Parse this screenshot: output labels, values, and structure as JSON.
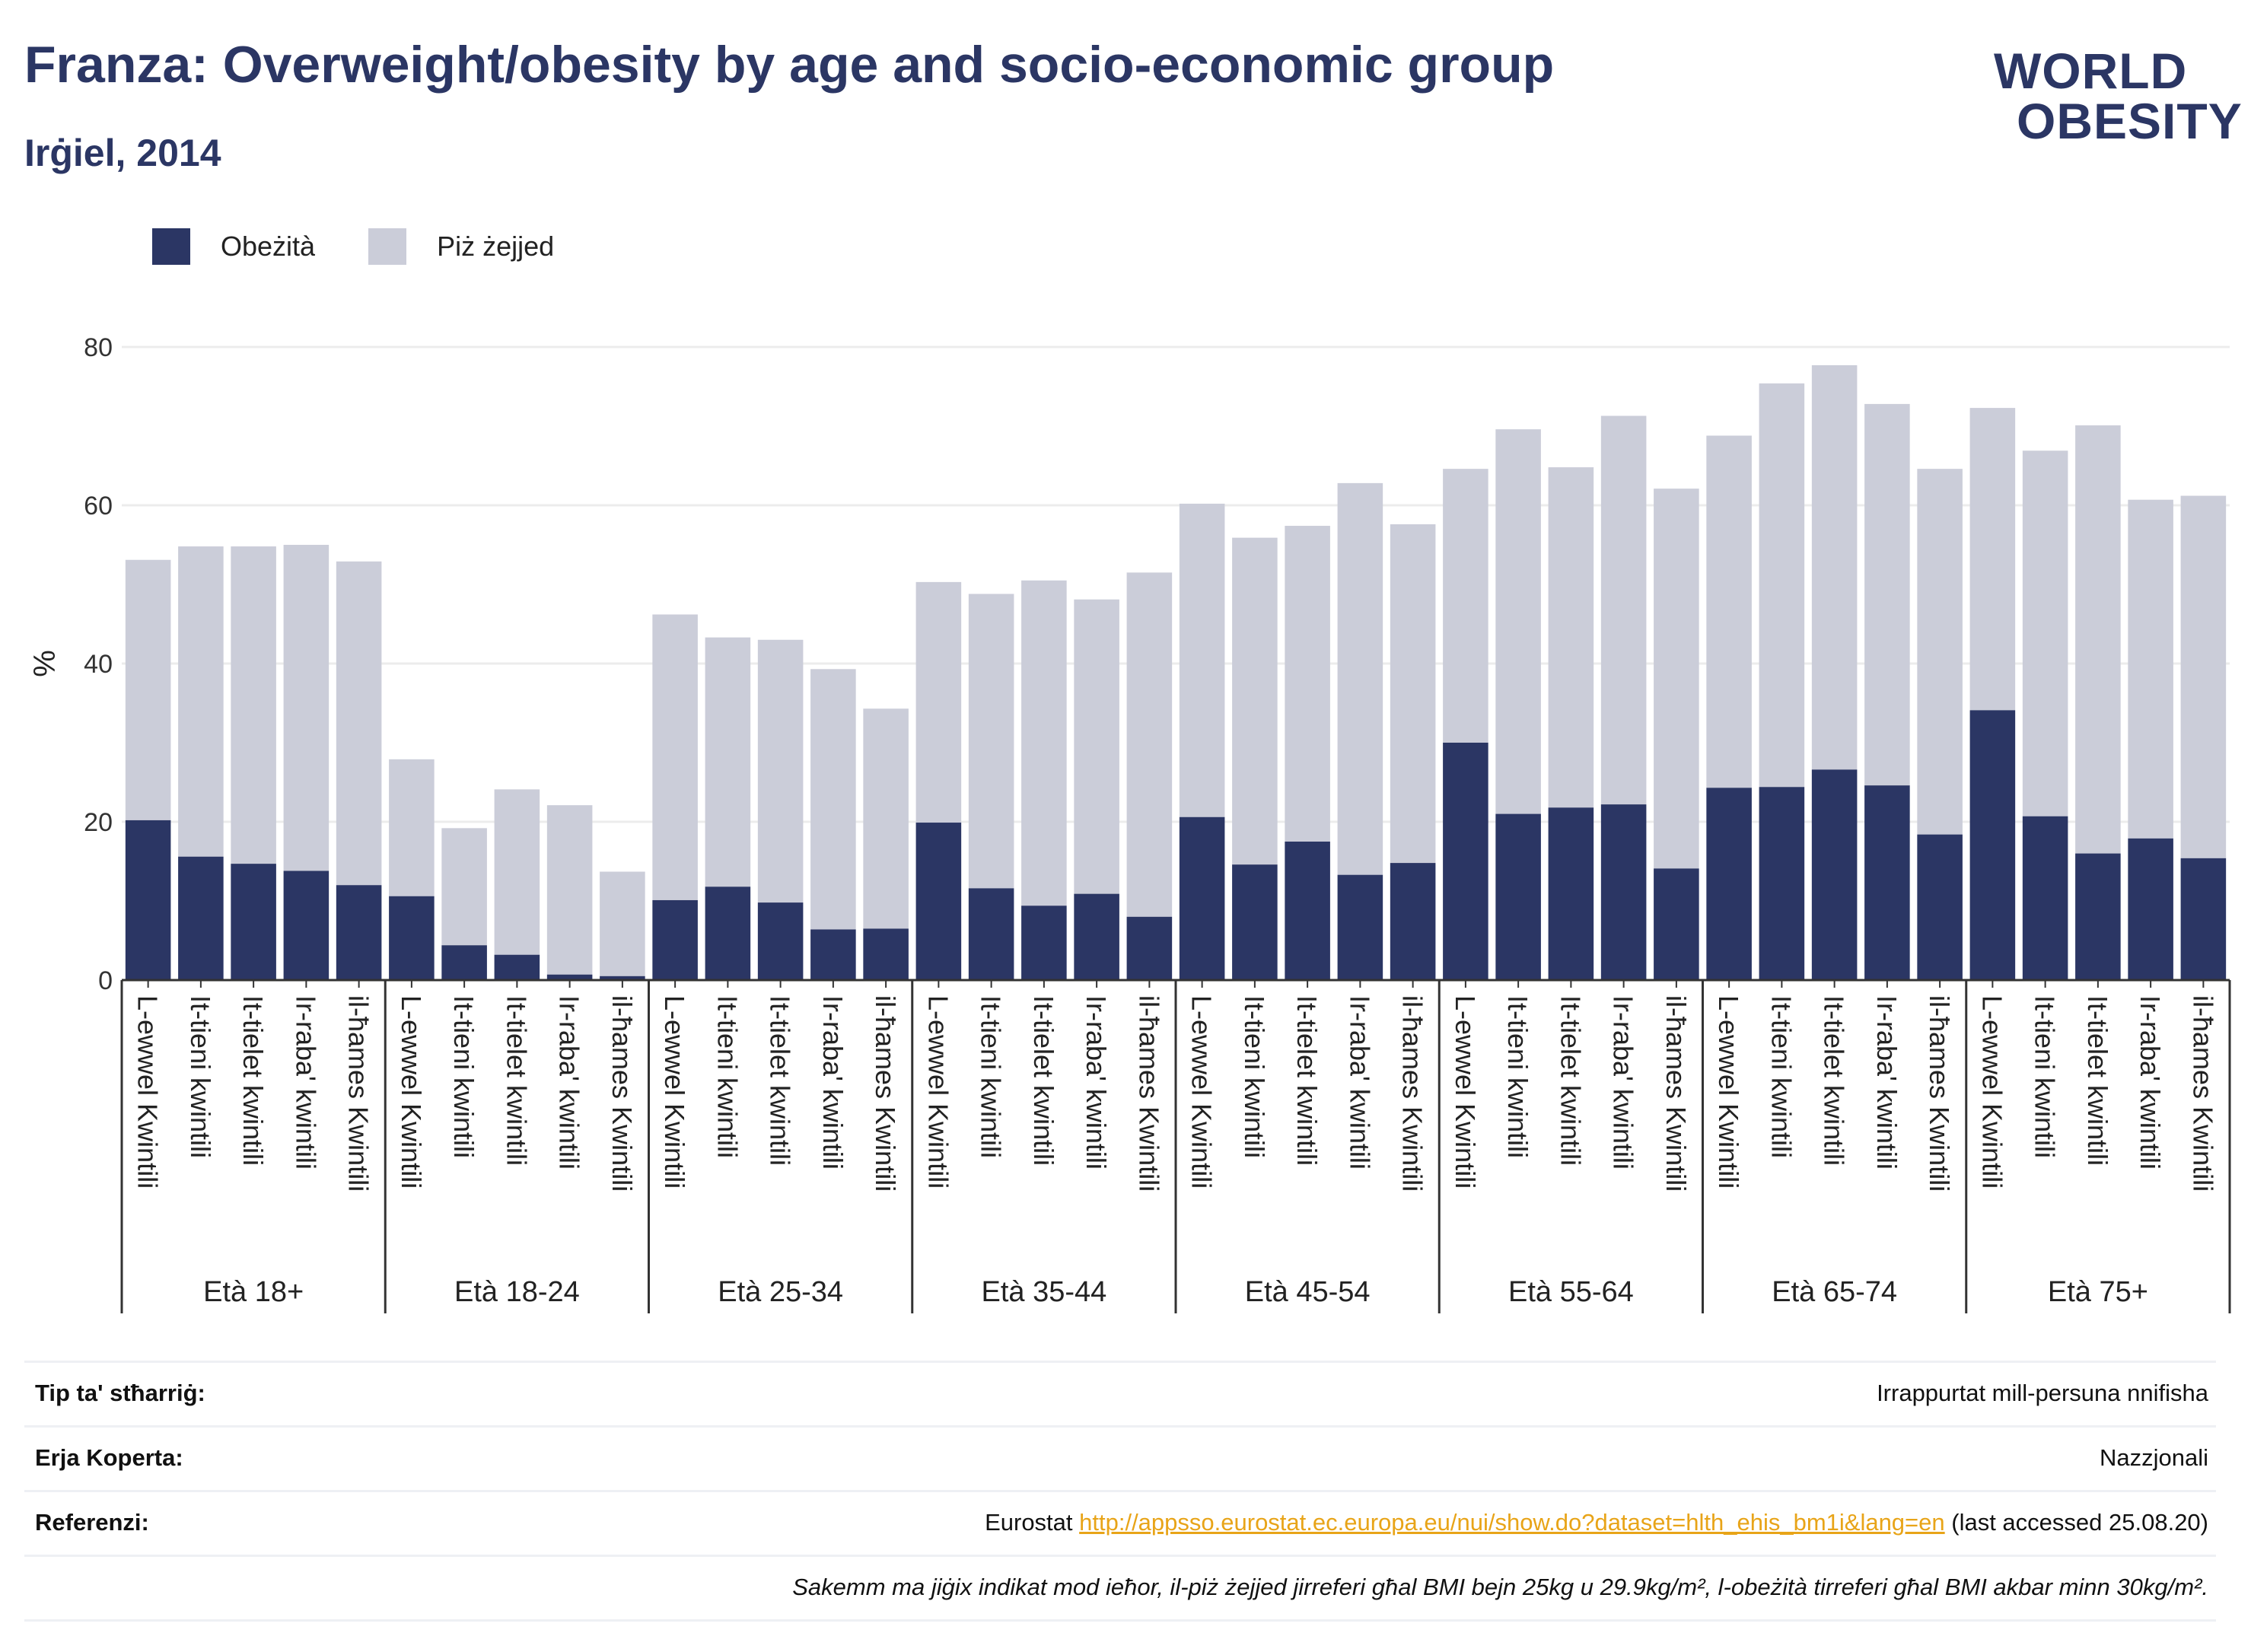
{
  "header": {
    "title": "Franza: Overweight/obesity by age and socio-economic group",
    "subtitle": "Irġiel, 2014"
  },
  "logo": {
    "line1": "WORLD",
    "line2": "OBESITY",
    "colors": {
      "text": "#2b3664",
      "slash_top": "#3dbfbf",
      "slash_bottom": "#e8675a"
    }
  },
  "colors": {
    "obesity": "#2b3664",
    "overweight": "#cbcdd9",
    "grid": "#ececec",
    "axis": "#333333"
  },
  "legend": {
    "obesity": "Obeżità",
    "overweight": "Piż żejjed"
  },
  "chart_data": {
    "type": "bar",
    "stacked": true,
    "ylabel": "%",
    "ylim": [
      0,
      80
    ],
    "yticks": [
      0,
      20,
      40,
      60,
      80
    ],
    "grid": true,
    "legend_position": "top-left",
    "group_label_prefix": "Età",
    "groups": [
      "Età 18+",
      "Età 18-24",
      "Età 25-34",
      "Età 35-44",
      "Età 45-54",
      "Età 55-64",
      "Età 65-74",
      "Età 75+"
    ],
    "categories": [
      "L-ewwel Kwintili",
      "It-tieni kwintili",
      "It-tielet kwintili",
      "Ir-raba' kwintili",
      "il-ħames Kwintili"
    ],
    "series": [
      {
        "name": "Obeżità",
        "values": [
          [
            20.2,
            15.6,
            14.7,
            13.8,
            12.0
          ],
          [
            10.6,
            4.4,
            3.2,
            0.7,
            0.5
          ],
          [
            10.1,
            11.8,
            9.8,
            6.4,
            6.5
          ],
          [
            19.9,
            11.6,
            9.4,
            10.9,
            8.0
          ],
          [
            20.6,
            14.6,
            17.5,
            13.3,
            14.8
          ],
          [
            30.0,
            21.0,
            21.8,
            22.2,
            14.1
          ],
          [
            24.3,
            24.4,
            26.6,
            24.6,
            18.4
          ],
          [
            34.1,
            20.7,
            16.0,
            17.9,
            15.4
          ]
        ]
      },
      {
        "name": "Piż żejjed",
        "values": [
          [
            32.9,
            39.2,
            40.1,
            41.2,
            40.9
          ],
          [
            17.3,
            14.8,
            20.9,
            21.4,
            13.2
          ],
          [
            36.1,
            31.5,
            33.2,
            32.9,
            27.8
          ],
          [
            30.4,
            37.2,
            41.1,
            37.2,
            43.5
          ],
          [
            39.6,
            41.3,
            39.9,
            49.5,
            42.8
          ],
          [
            34.6,
            48.6,
            43.0,
            49.1,
            48.0
          ],
          [
            44.5,
            51.0,
            51.1,
            48.2,
            46.2
          ],
          [
            38.2,
            46.2,
            54.1,
            42.8,
            45.8
          ]
        ]
      }
    ]
  },
  "info": {
    "rows": [
      {
        "label": "Tip ta' stħarriġ:",
        "value": "Irrappurtat mill-persuna nnifisha"
      },
      {
        "label": "Erja Koperta:",
        "value": "Nazzjonali"
      },
      {
        "label": "Referenzi:",
        "prefix": "Eurostat ",
        "link": "http://appsso.eurostat.ec.europa.eu/nui/show.do?dataset=hlth_ehis_bm1i&lang=en",
        "suffix": " (last accessed 25.08.20)"
      }
    ],
    "note": "Sakemm ma jiġix indikat mod ieħor, il-piż żejjed jirreferi għal BMI bejn 25kg u 29.9kg/m², l-obeżità tirreferi għal BMI akbar minn 30kg/m²."
  }
}
